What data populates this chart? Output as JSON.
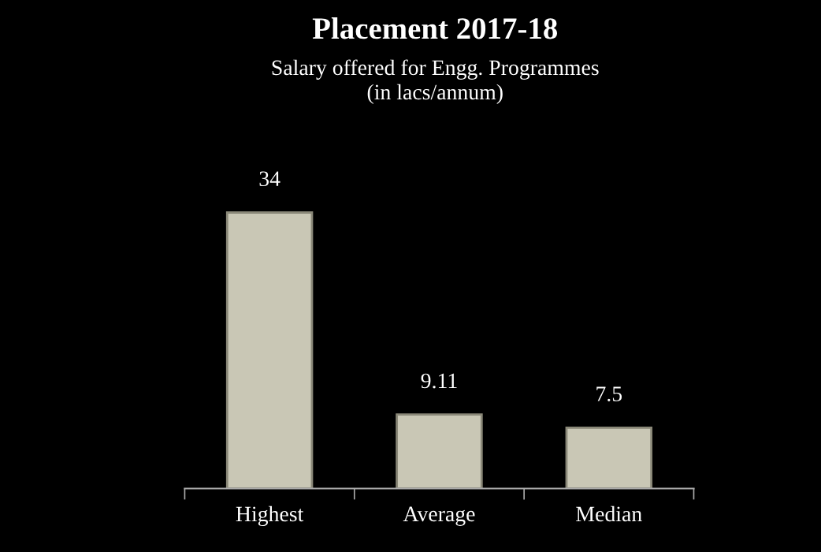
{
  "chart_data": {
    "type": "bar",
    "title": "Placement 2017-18",
    "subtitle": "Salary offered for Engg. Programmes\n(in lacs/annum)",
    "categories": [
      "Highest",
      "Average",
      "Median"
    ],
    "values": [
      34,
      9.11,
      7.5
    ],
    "color": "#c9c7b5",
    "data_labels": true,
    "grid": false,
    "legend": false
  }
}
